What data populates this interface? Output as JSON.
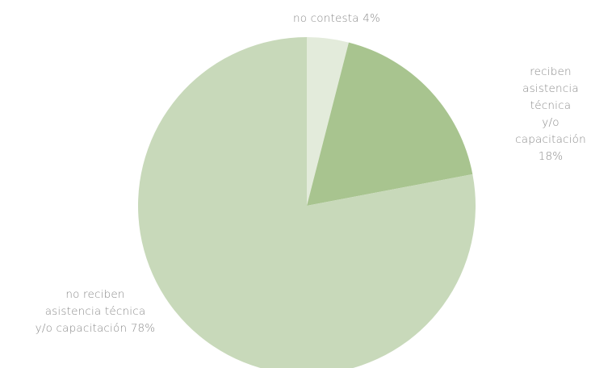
{
  "chart_data": {
    "type": "pie",
    "categories": [
      "no contesta",
      "reciben\nasistencia técnica\ny/o capacitación",
      "no reciben\nasistencia técnica\ny/o capacitación"
    ],
    "values": [
      4,
      18,
      78
    ],
    "value_labels": [
      "4%",
      "18%",
      "78%"
    ],
    "colors": [
      "#e3ebdb",
      "#a8c48f",
      "#c8d9ba"
    ]
  }
}
